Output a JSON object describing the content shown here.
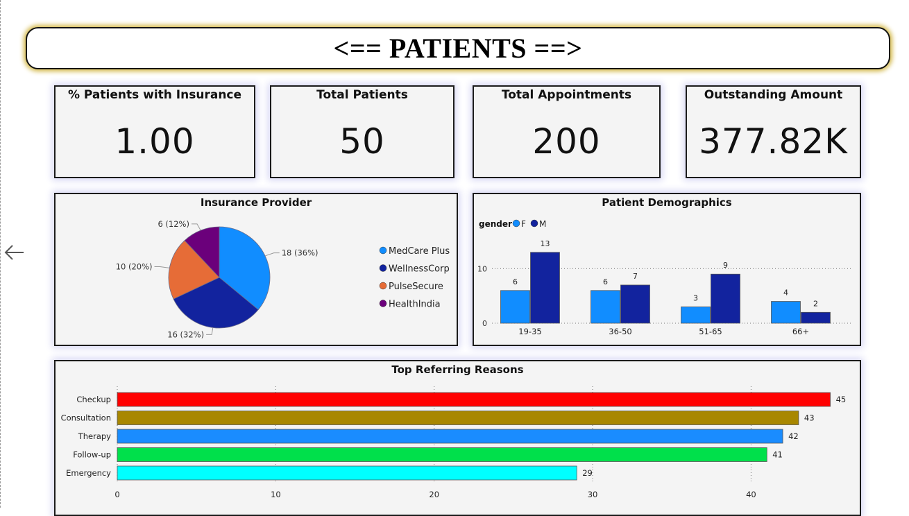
{
  "page_title": "<== PATIENTS ==>",
  "kpis": [
    {
      "title": "% Patients with Insurance",
      "value": "1.00"
    },
    {
      "title": "Total Patients",
      "value": "50"
    },
    {
      "title": "Total Appointments",
      "value": "200"
    },
    {
      "title": "Outstanding Amount",
      "value": "377.82K"
    }
  ],
  "colors": {
    "MedCare Plus": "#118dff",
    "WellnessCorp": "#12239e",
    "PulseSecure": "#e66c37",
    "HealthIndia": "#6b007b",
    "F": "#118dff",
    "M": "#12239e",
    "Checkup": "#ff0000",
    "Consultation": "#a88700",
    "Therapy": "#1a8cff",
    "Follow-up": "#00e04b",
    "Emergency": "#00ffff"
  },
  "chart_data": [
    {
      "type": "pie",
      "title": "Insurance Provider",
      "categories": [
        "MedCare Plus",
        "WellnessCorp",
        "PulseSecure",
        "HealthIndia"
      ],
      "values": [
        18,
        16,
        10,
        6
      ],
      "data_labels": [
        "18 (36%)",
        "16 (32%)",
        "10 (20%)",
        "6 (12%)"
      ],
      "legend_position": "right"
    },
    {
      "type": "bar",
      "title": "Patient Demographics",
      "legend_title": "gender",
      "categories": [
        "19-35",
        "36-50",
        "51-65",
        "66+"
      ],
      "series": [
        {
          "name": "F",
          "values": [
            6,
            6,
            3,
            4
          ]
        },
        {
          "name": "M",
          "values": [
            13,
            7,
            9,
            2
          ]
        }
      ],
      "y_ticks": [
        0,
        10
      ],
      "ylim": [
        0,
        14.5
      ],
      "grid": true,
      "legend_position": "top-left"
    },
    {
      "type": "bar",
      "orientation": "horizontal",
      "title": "Top Referring Reasons",
      "categories": [
        "Checkup",
        "Consultation",
        "Therapy",
        "Follow-up",
        "Emergency"
      ],
      "values": [
        45,
        43,
        42,
        41,
        29
      ],
      "x_ticks": [
        0,
        10,
        20,
        30,
        40
      ],
      "xlim": [
        0,
        45.5
      ],
      "grid": true
    }
  ]
}
